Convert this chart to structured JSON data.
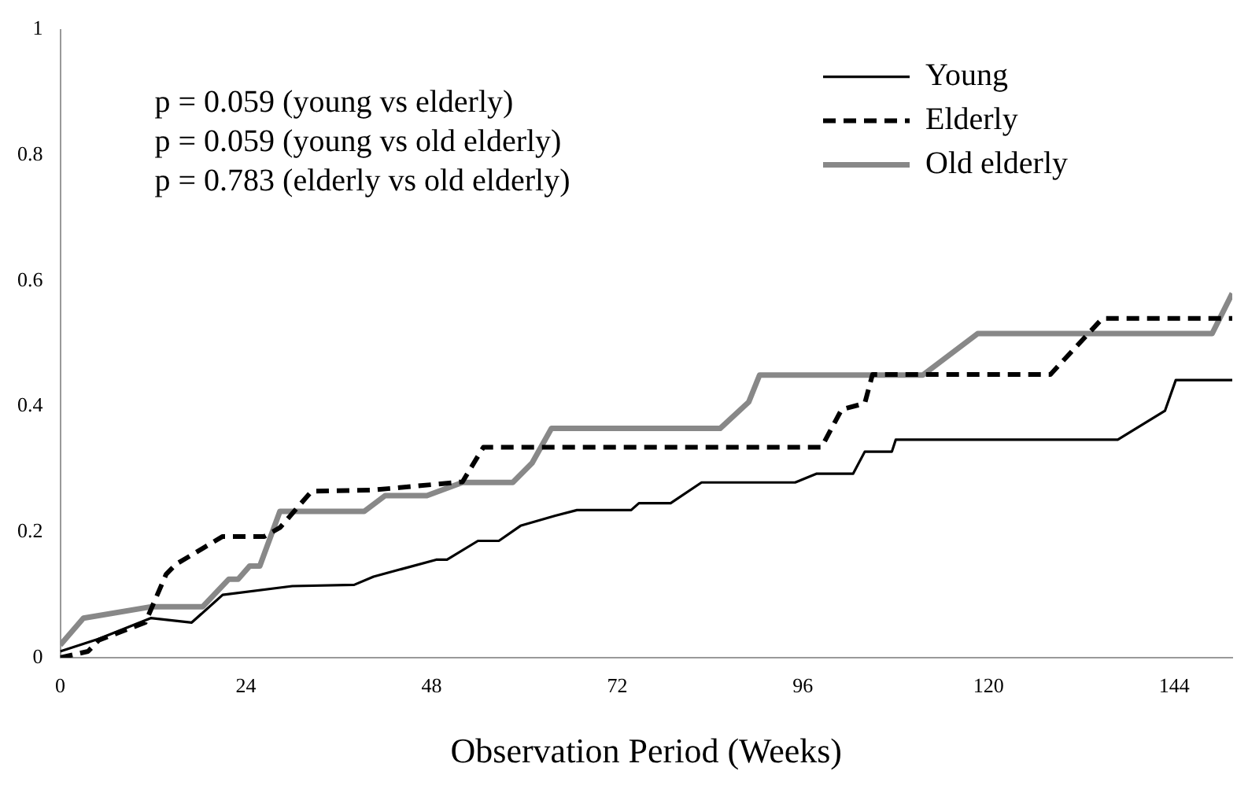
{
  "chart_data": {
    "type": "line",
    "xlabel": "Observation Period (Weeks)",
    "annotations": [
      "p = 0.059 (young vs elderly)",
      "p = 0.059 (young vs old elderly)",
      "p = 0.783 (elderly vs old elderly)"
    ],
    "xlim": [
      0,
      151.5
    ],
    "xticks": [
      0,
      24,
      48,
      72,
      96,
      120,
      144
    ],
    "ylim": [
      0,
      1
    ],
    "yticks": [
      0,
      0.2,
      0.4,
      0.6,
      0.8,
      1
    ],
    "grid": false,
    "legend": "top right",
    "marker": "none",
    "series": [
      {
        "name": "Young",
        "color": "#000000",
        "line_style": "solid",
        "x": [
          0,
          5,
          11.7,
          17,
          21,
          30,
          38,
          40.5,
          48.6,
          50,
          54,
          56.7,
          59.5,
          64,
          66.8,
          73.8,
          74.8,
          78.9,
          82.9,
          95,
          97.8,
          102.5,
          104,
          107.5,
          108,
          136.7,
          142.8,
          144.2,
          151.5
        ],
        "values": [
          0.01,
          0.03,
          0.063,
          0.056,
          0.1,
          0.114,
          0.116,
          0.129,
          0.156,
          0.156,
          0.186,
          0.186,
          0.21,
          0.226,
          0.235,
          0.235,
          0.246,
          0.246,
          0.279,
          0.279,
          0.293,
          0.293,
          0.328,
          0.328,
          0.347,
          0.347,
          0.393,
          0.442,
          0.442
        ]
      },
      {
        "name": "Elderly",
        "color": "#000000",
        "line_style": "dashed",
        "x": [
          0,
          3.6,
          5,
          11,
          13.7,
          15,
          21,
          26.4,
          28.4,
          32.5,
          40.5,
          52,
          54.7,
          98.4,
          101,
          104,
          105,
          128,
          134.7,
          151.5
        ],
        "values": [
          0,
          0.01,
          0.028,
          0.056,
          0.133,
          0.149,
          0.193,
          0.193,
          0.207,
          0.265,
          0.267,
          0.28,
          0.335,
          0.335,
          0.395,
          0.405,
          0.451,
          0.451,
          0.54,
          0.54
        ]
      },
      {
        "name": "Old elderly",
        "color": "#888888",
        "line_style": "solid",
        "x": [
          0,
          3,
          11.7,
          18.4,
          21.8,
          23,
          24.5,
          25.8,
          28.4,
          39.3,
          42,
          47.4,
          52,
          58.5,
          61,
          63.5,
          85.3,
          89,
          90.4,
          111.5,
          118.6,
          148.9,
          151.5
        ],
        "values": [
          0.02,
          0.063,
          0.081,
          0.081,
          0.125,
          0.125,
          0.146,
          0.146,
          0.233,
          0.233,
          0.258,
          0.258,
          0.279,
          0.279,
          0.31,
          0.365,
          0.365,
          0.407,
          0.45,
          0.45,
          0.516,
          0.516,
          0.58
        ]
      }
    ]
  }
}
